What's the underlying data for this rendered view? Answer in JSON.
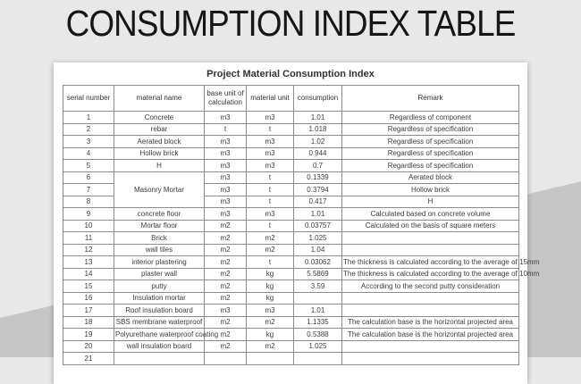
{
  "page_title": "CONSUMPTION INDEX TABLE",
  "sheet": {
    "title": "Project Material Consumption Index",
    "columns": [
      "serial number",
      "material name",
      "base unit of calculation",
      "material unit",
      "consumption",
      "Remark"
    ],
    "rows": [
      {
        "serial": "1",
        "name": "Concrete",
        "base_unit": "m3",
        "material_unit": "m3",
        "consumption": "1.01",
        "remark": "Regardless of component"
      },
      {
        "serial": "2",
        "name": "rebar",
        "base_unit": "t",
        "material_unit": "t",
        "consumption": "1.018",
        "remark": "Regardless of specification"
      },
      {
        "serial": "3",
        "name": "Aerated block",
        "base_unit": "m3",
        "material_unit": "m3",
        "consumption": "1.02",
        "remark": "Regardless of specification"
      },
      {
        "serial": "4",
        "name": "Hollow brick",
        "base_unit": "m3",
        "material_unit": "m3",
        "consumption": "0.944",
        "remark": "Regardless of specification"
      },
      {
        "serial": "5",
        "name": "H",
        "base_unit": "m3",
        "material_unit": "m3",
        "consumption": "0.7",
        "remark": "Regardless of specification"
      },
      {
        "serial": "6",
        "name": "Masonry Mortar",
        "name_rowspan": 3,
        "base_unit": "m3",
        "material_unit": "t",
        "consumption": "0.1339",
        "remark": "Aerated block"
      },
      {
        "serial": "7",
        "name_skip": true,
        "base_unit": "m3",
        "material_unit": "t",
        "consumption": "0.3794",
        "remark": "Hollow brick"
      },
      {
        "serial": "8",
        "name_skip": true,
        "base_unit": "m3",
        "material_unit": "t",
        "consumption": "0.417",
        "remark": "H"
      },
      {
        "serial": "9",
        "name": "concrete floor",
        "base_unit": "m3",
        "material_unit": "m3",
        "consumption": "1.01",
        "remark": "Calculated based on concrete volume"
      },
      {
        "serial": "10",
        "name": "Mortar floor",
        "base_unit": "m2",
        "material_unit": "t",
        "consumption": "0.03757",
        "remark": "Calculated on the basis of square meters"
      },
      {
        "serial": "11",
        "name": "Brick",
        "base_unit": "m2",
        "material_unit": "m2",
        "consumption": "1.025",
        "remark": ""
      },
      {
        "serial": "12",
        "name": "wall tiles",
        "base_unit": "m2",
        "material_unit": "m2",
        "consumption": "1.04",
        "remark": ""
      },
      {
        "serial": "13",
        "name": "interior plastering",
        "base_unit": "m2",
        "material_unit": "t",
        "consumption": "0.03062",
        "remark": "The thickness is calculated according to the average of 15mm",
        "remark_overflow": true
      },
      {
        "serial": "14",
        "name": "plaster wall",
        "base_unit": "m2",
        "material_unit": "kg",
        "consumption": "5.5869",
        "remark": "The thickness is calculated according to the average of 10mm",
        "remark_overflow": true
      },
      {
        "serial": "15",
        "name": "putty",
        "base_unit": "m2",
        "material_unit": "kg",
        "consumption": "3.59",
        "remark": "According to the second putty consideration"
      },
      {
        "serial": "16",
        "name": "Insulation mortar",
        "base_unit": "m2",
        "material_unit": "kg",
        "consumption": "",
        "remark": ""
      },
      {
        "serial": "17",
        "name": "Roof insulation board",
        "base_unit": "m3",
        "material_unit": "m3",
        "consumption": "1.01",
        "remark": ""
      },
      {
        "serial": "18",
        "name": "SBS membrane waterproof",
        "base_unit": "m2",
        "material_unit": "m2",
        "consumption": "1.1335",
        "remark": "The calculation base is the horizontal projected area"
      },
      {
        "serial": "19",
        "name": "Polyurethane waterproof coating",
        "base_unit": "m2",
        "material_unit": "kg",
        "consumption": "0.5388",
        "remark": "The calculation base is the horizontal projected area"
      },
      {
        "serial": "20",
        "name": "wall insulation board",
        "base_unit": "m2",
        "material_unit": "m2",
        "consumption": "1.025",
        "remark": ""
      },
      {
        "serial": "21",
        "name": "",
        "base_unit": "",
        "material_unit": "",
        "consumption": "",
        "remark": ""
      }
    ]
  },
  "colors": {
    "page_bg": "#e8e8e8",
    "diagonal_band": "#c6c6c6",
    "sheet_bg": "#ffffff",
    "table_border": "#8c8c8c",
    "table_outer_border": "#5e5e5e",
    "title_text": "#161616",
    "cell_text": "#3d3d3d"
  }
}
